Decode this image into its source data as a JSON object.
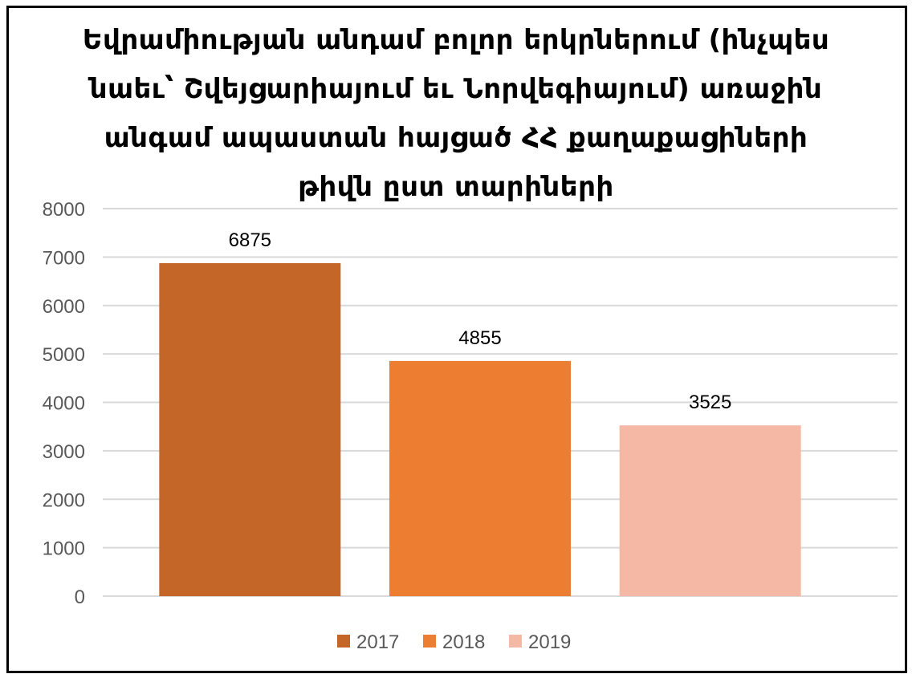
{
  "chart_data": {
    "type": "bar",
    "title_lines": [
      "Եվրամիության անդամ բոլոր երկրներում (ինչպես",
      "նաեւ՝ Շվեյցարիայում եւ Նորվեգիայում) առաջին",
      "անգամ ապաստան հայցած ՀՀ քաղաքացիների",
      "թիվն ըստ տարիների"
    ],
    "categories": [
      "2017",
      "2018",
      "2019"
    ],
    "values": [
      6875,
      4855,
      3525
    ],
    "colors": [
      "#C46627",
      "#ED7D31",
      "#F4B8A4"
    ],
    "ylim": [
      0,
      8000
    ],
    "yticks": [
      "0",
      "1000",
      "2000",
      "3000",
      "4000",
      "5000",
      "6000",
      "7000",
      "8000"
    ],
    "grid": true,
    "legend_position": "bottom",
    "xlabel": "",
    "ylabel": ""
  }
}
